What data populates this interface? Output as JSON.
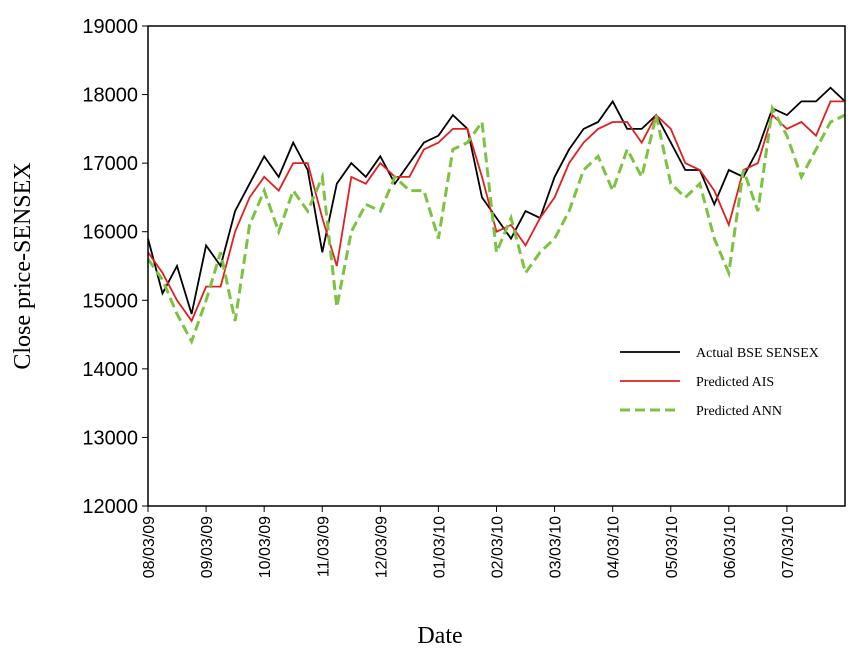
{
  "chart_data": {
    "type": "line",
    "x_label": "Date",
    "y_label": "Close price-SENSEX",
    "categories": [
      "08/03/09",
      null,
      null,
      null,
      "09/03/09",
      null,
      null,
      null,
      "10/03/09",
      null,
      null,
      null,
      "11/03/09",
      null,
      null,
      null,
      "12/03/09",
      null,
      null,
      null,
      "01/03/10",
      null,
      null,
      null,
      "02/03/10",
      null,
      null,
      null,
      "03/03/10",
      null,
      null,
      null,
      "04/03/10",
      null,
      null,
      null,
      "05/03/10",
      null,
      null,
      null,
      "06/03/10",
      null,
      null,
      null,
      "07/03/10",
      null,
      null,
      null,
      null
    ],
    "series": [
      {
        "name": "Actual BSE SENSEX",
        "color": "#000000",
        "dash": false,
        "values": [
          15900,
          15100,
          15500,
          14800,
          15800,
          15500,
          16300,
          16700,
          17100,
          16800,
          17300,
          16900,
          15700,
          16700,
          17000,
          16800,
          17100,
          16700,
          17000,
          17300,
          17400,
          17700,
          17500,
          16500,
          16200,
          15900,
          16300,
          16200,
          16800,
          17200,
          17500,
          17600,
          17900,
          17500,
          17500,
          17700,
          17300,
          16900,
          16900,
          16400,
          16900,
          16800,
          17200,
          17800,
          17700,
          17900,
          17900,
          18100,
          17900
        ]
      },
      {
        "name": "Predicted AIS",
        "color": "#e02020",
        "dash": false,
        "values": [
          15700,
          15400,
          15000,
          14700,
          15200,
          15200,
          16000,
          16500,
          16800,
          16600,
          17000,
          17000,
          16200,
          15500,
          16800,
          16700,
          17000,
          16800,
          16800,
          17200,
          17300,
          17500,
          17500,
          16800,
          16000,
          16100,
          15800,
          16200,
          16500,
          17000,
          17300,
          17500,
          17600,
          17600,
          17300,
          17700,
          17500,
          17000,
          16900,
          16600,
          16100,
          16900,
          17000,
          17700,
          17500,
          17600,
          17400,
          17900,
          17900
        ]
      },
      {
        "name": "Predicted ANN",
        "color": "#7dc242",
        "dash": true,
        "values": [
          15600,
          15300,
          14800,
          14400,
          15000,
          15700,
          14700,
          16100,
          16600,
          16000,
          16600,
          16300,
          16800,
          14900,
          16000,
          16400,
          16300,
          16800,
          16600,
          16600,
          15900,
          17200,
          17300,
          17600,
          15700,
          16200,
          15400,
          15700,
          15900,
          16300,
          16900,
          17100,
          16600,
          17200,
          16800,
          17700,
          16700,
          16500,
          16700,
          15900,
          15400,
          16900,
          16300,
          17800,
          17400,
          16800,
          17200,
          17600,
          17700
        ]
      }
    ],
    "ylim": [
      12000,
      19000
    ],
    "yticks": [
      12000,
      13000,
      14000,
      15000,
      16000,
      17000,
      18000,
      19000
    ],
    "grid": false,
    "legend": "right"
  }
}
